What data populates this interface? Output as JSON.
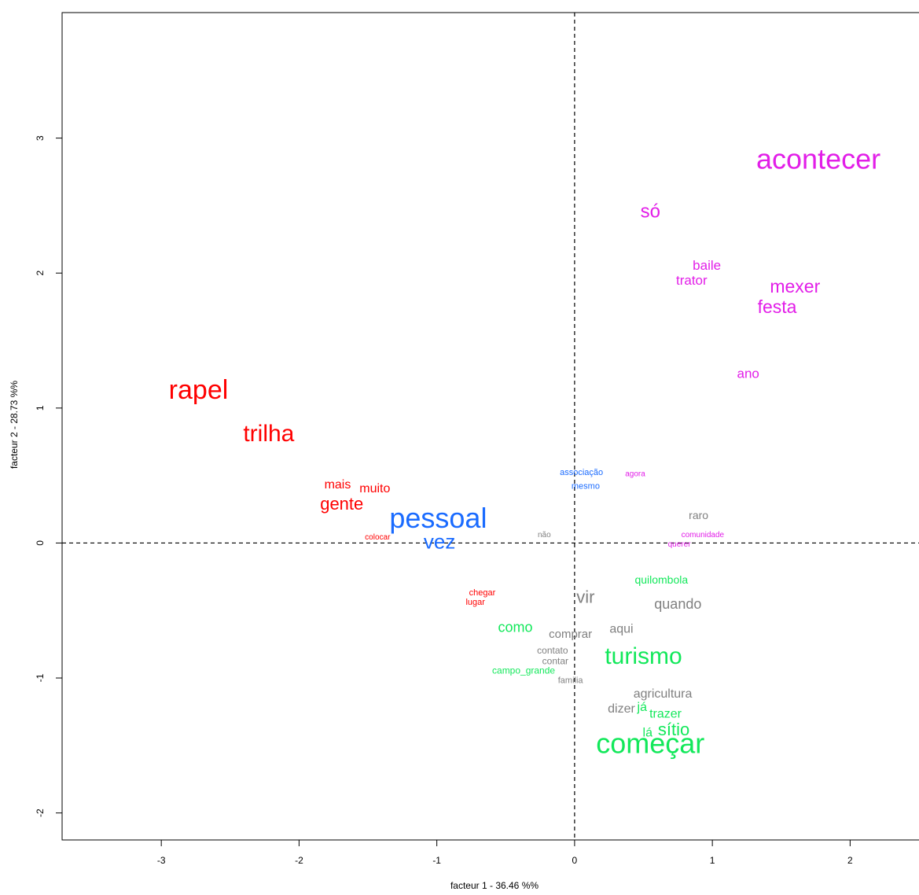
{
  "chart_data": {
    "type": "scatter",
    "title": "",
    "xlabel": "facteur  1  - 36.46 %%",
    "ylabel": "facteur  2  - 28.73 %%",
    "xlim": [
      -3.72,
      2.5
    ],
    "ylim": [
      -2.2,
      3.93
    ],
    "xticks": [
      -3,
      -2,
      -1,
      0,
      1,
      2
    ],
    "yticks": [
      -2,
      -1,
      0,
      1,
      2,
      3
    ],
    "reference_lines": {
      "x": 0,
      "y": 0,
      "style": "dashed"
    },
    "colors": {
      "red": "#ff0000",
      "blue": "#1a6bff",
      "magenta": "#e21ee8",
      "green": "#12e85a",
      "grey": "#808080"
    },
    "points": [
      {
        "label": "acontecer",
        "x": 1.77,
        "y": 2.83,
        "color": "magenta",
        "size": 36
      },
      {
        "label": "só",
        "x": 0.55,
        "y": 2.45,
        "color": "magenta",
        "size": 24
      },
      {
        "label": "baile",
        "x": 0.96,
        "y": 2.05,
        "color": "magenta",
        "size": 17
      },
      {
        "label": "trator",
        "x": 0.85,
        "y": 1.94,
        "color": "magenta",
        "size": 17
      },
      {
        "label": "mexer",
        "x": 1.6,
        "y": 1.89,
        "color": "magenta",
        "size": 23
      },
      {
        "label": "festa",
        "x": 1.47,
        "y": 1.74,
        "color": "magenta",
        "size": 23
      },
      {
        "label": "ano",
        "x": 1.26,
        "y": 1.25,
        "color": "magenta",
        "size": 17
      },
      {
        "label": "agora",
        "x": 0.44,
        "y": 0.51,
        "color": "magenta",
        "size": 10
      },
      {
        "label": "comunidade",
        "x": 0.93,
        "y": 0.06,
        "color": "magenta",
        "size": 10
      },
      {
        "label": "querer",
        "x": 0.76,
        "y": -0.01,
        "color": "magenta",
        "size": 10
      },
      {
        "label": "rapel",
        "x": -2.73,
        "y": 1.12,
        "color": "red",
        "size": 34
      },
      {
        "label": "trilha",
        "x": -2.22,
        "y": 0.8,
        "color": "red",
        "size": 30
      },
      {
        "label": "mais",
        "x": -1.72,
        "y": 0.43,
        "color": "red",
        "size": 16
      },
      {
        "label": "muito",
        "x": -1.45,
        "y": 0.4,
        "color": "red",
        "size": 16
      },
      {
        "label": "gente",
        "x": -1.69,
        "y": 0.28,
        "color": "red",
        "size": 22
      },
      {
        "label": "colocar",
        "x": -1.43,
        "y": 0.04,
        "color": "red",
        "size": 10
      },
      {
        "label": "chegar",
        "x": -0.67,
        "y": -0.37,
        "color": "red",
        "size": 11
      },
      {
        "label": "lugar",
        "x": -0.72,
        "y": -0.44,
        "color": "red",
        "size": 11
      },
      {
        "label": "pessoal",
        "x": -0.99,
        "y": 0.17,
        "color": "blue",
        "size": 36
      },
      {
        "label": "vez",
        "x": -0.98,
        "y": -0.0,
        "color": "blue",
        "size": 26
      },
      {
        "label": "associação",
        "x": 0.05,
        "y": 0.52,
        "color": "blue",
        "size": 11
      },
      {
        "label": "mesmo",
        "x": 0.08,
        "y": 0.42,
        "color": "blue",
        "size": 11
      },
      {
        "label": "não",
        "x": -0.22,
        "y": 0.06,
        "color": "grey",
        "size": 10
      },
      {
        "label": "raro",
        "x": 0.9,
        "y": 0.2,
        "color": "grey",
        "size": 14
      },
      {
        "label": "vir",
        "x": 0.08,
        "y": -0.41,
        "color": "grey",
        "size": 22
      },
      {
        "label": "quando",
        "x": 0.75,
        "y": -0.46,
        "color": "grey",
        "size": 18
      },
      {
        "label": "aqui",
        "x": 0.34,
        "y": -0.64,
        "color": "grey",
        "size": 16
      },
      {
        "label": "comprar",
        "x": -0.03,
        "y": -0.68,
        "color": "grey",
        "size": 15
      },
      {
        "label": "contato",
        "x": -0.16,
        "y": -0.8,
        "color": "grey",
        "size": 12
      },
      {
        "label": "contar",
        "x": -0.14,
        "y": -0.88,
        "color": "grey",
        "size": 12
      },
      {
        "label": "familia",
        "x": -0.03,
        "y": -1.02,
        "color": "grey",
        "size": 11
      },
      {
        "label": "agricultura",
        "x": 0.64,
        "y": -1.12,
        "color": "grey",
        "size": 16
      },
      {
        "label": "dizer",
        "x": 0.34,
        "y": -1.23,
        "color": "grey",
        "size": 16
      },
      {
        "label": "quilombola",
        "x": 0.63,
        "y": -0.28,
        "color": "green",
        "size": 14
      },
      {
        "label": "como",
        "x": -0.43,
        "y": -0.63,
        "color": "green",
        "size": 18
      },
      {
        "label": "turismo",
        "x": 0.5,
        "y": -0.85,
        "color": "green",
        "size": 30
      },
      {
        "label": "campo_grande",
        "x": -0.37,
        "y": -0.95,
        "color": "green",
        "size": 12
      },
      {
        "label": "já",
        "x": 0.49,
        "y": -1.22,
        "color": "green",
        "size": 16
      },
      {
        "label": "trazer",
        "x": 0.66,
        "y": -1.27,
        "color": "green",
        "size": 16
      },
      {
        "label": "lá",
        "x": 0.53,
        "y": -1.41,
        "color": "green",
        "size": 16
      },
      {
        "label": "sítio",
        "x": 0.72,
        "y": -1.39,
        "color": "green",
        "size": 22
      },
      {
        "label": "começar",
        "x": 0.55,
        "y": -1.5,
        "color": "green",
        "size": 36
      }
    ]
  }
}
